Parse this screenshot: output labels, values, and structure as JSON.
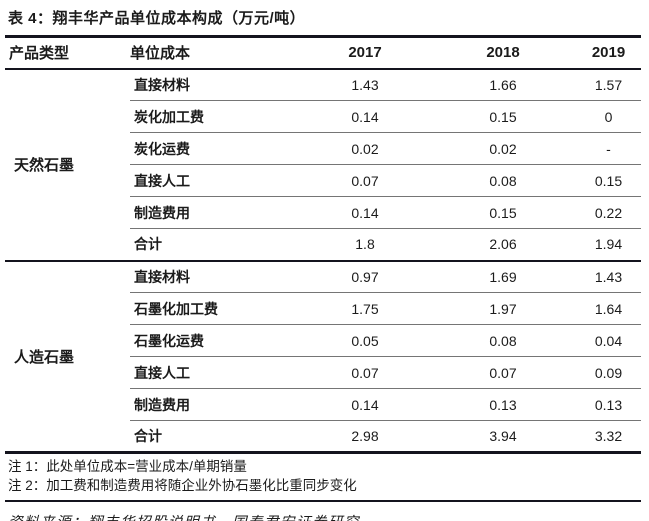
{
  "title": "表 4：翔丰华产品单位成本构成（万元/吨）",
  "table": {
    "headers": [
      "产品类型",
      "单位成本",
      "2017",
      "2018",
      "2019"
    ],
    "groups": [
      {
        "name": "天然石墨",
        "rows": [
          {
            "label": "直接材料",
            "values": [
              "1.43",
              "1.66",
              "1.57"
            ]
          },
          {
            "label": "炭化加工费",
            "values": [
              "0.14",
              "0.15",
              "0"
            ]
          },
          {
            "label": "炭化运费",
            "values": [
              "0.02",
              "0.02",
              "-"
            ]
          },
          {
            "label": "直接人工",
            "values": [
              "0.07",
              "0.08",
              "0.15"
            ]
          },
          {
            "label": "制造费用",
            "values": [
              "0.14",
              "0.15",
              "0.22"
            ]
          },
          {
            "label": "合计",
            "values": [
              "1.8",
              "2.06",
              "1.94"
            ]
          }
        ]
      },
      {
        "name": "人造石墨",
        "rows": [
          {
            "label": "直接材料",
            "values": [
              "0.97",
              "1.69",
              "1.43"
            ]
          },
          {
            "label": "石墨化加工费",
            "values": [
              "1.75",
              "1.97",
              "1.64"
            ]
          },
          {
            "label": "石墨化运费",
            "values": [
              "0.05",
              "0.08",
              "0.04"
            ]
          },
          {
            "label": "直接人工",
            "values": [
              "0.07",
              "0.07",
              "0.09"
            ]
          },
          {
            "label": "制造费用",
            "values": [
              "0.14",
              "0.13",
              "0.13"
            ]
          },
          {
            "label": "合计",
            "values": [
              "2.98",
              "3.94",
              "3.32"
            ]
          }
        ]
      }
    ]
  },
  "notes": [
    "注 1：此处单位成本=营业成本/单期销量",
    "注 2：加工费和制造费用将随企业外协石墨化比重同步变化"
  ],
  "source": "资料来源：翔丰华招股说明书，国泰君安证券研究",
  "colors": {
    "major_rule": "#14141e",
    "row_rule": "#757575",
    "text": "#1b1b1b",
    "background": "#ffffff"
  }
}
